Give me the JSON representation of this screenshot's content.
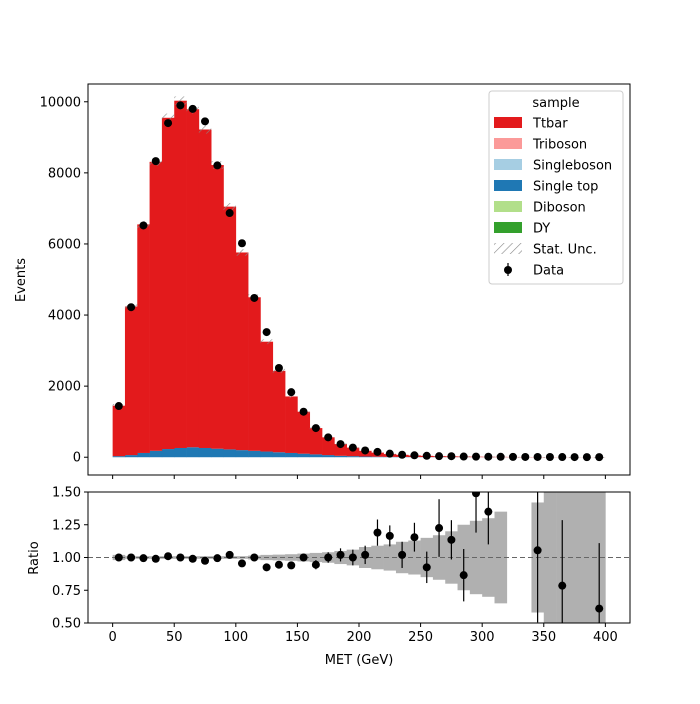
{
  "chart_data": [
    {
      "type": "bar",
      "subtype": "stacked-histogram",
      "xlabel": "",
      "ylabel": "Events",
      "xlim": [
        -20,
        420
      ],
      "ylim": [
        -500,
        10500
      ],
      "bin_edges": [
        0,
        10,
        20,
        30,
        40,
        50,
        60,
        70,
        80,
        90,
        100,
        110,
        120,
        130,
        140,
        150,
        160,
        170,
        180,
        190,
        200,
        210,
        220,
        230,
        240,
        250,
        260,
        270,
        280,
        290,
        300,
        310,
        320,
        330,
        340,
        350,
        360,
        370,
        380,
        390,
        400
      ],
      "x_ticks": [
        0,
        50,
        100,
        150,
        200,
        250,
        300,
        350,
        400
      ],
      "y_ticks": [
        0,
        2000,
        4000,
        6000,
        8000,
        10000
      ],
      "y_tick_labels": [
        "0",
        "2000",
        "4000",
        "6000",
        "8000",
        "10000"
      ],
      "legend": {
        "title": "sample",
        "position": "top-right",
        "entries": [
          {
            "label": "Ttbar",
            "color": "#e31a1c",
            "kind": "patch"
          },
          {
            "label": "Triboson",
            "color": "#fb9a99",
            "kind": "patch"
          },
          {
            "label": "Singleboson",
            "color": "#a6cee3",
            "kind": "patch"
          },
          {
            "label": "Single top",
            "color": "#1f78b4",
            "kind": "patch"
          },
          {
            "label": "Diboson",
            "color": "#b2df8a",
            "kind": "patch"
          },
          {
            "label": "DY",
            "color": "#33a02c",
            "kind": "patch"
          },
          {
            "label": "Stat. Unc.",
            "color": "#888888",
            "kind": "hatch"
          },
          {
            "label": "Data",
            "color": "#000000",
            "kind": "marker"
          }
        ]
      },
      "series": [
        {
          "name": "Single top",
          "color": "#1f78b4",
          "values": [
            30,
            60,
            120,
            180,
            230,
            260,
            280,
            260,
            240,
            220,
            200,
            180,
            160,
            140,
            120,
            100,
            80,
            60,
            40,
            30,
            20,
            15,
            10,
            8,
            5,
            4,
            3,
            2,
            2,
            1,
            1,
            1,
            1,
            1,
            0,
            0,
            0,
            0,
            0,
            0
          ]
        },
        {
          "name": "Ttbar",
          "color": "#e31a1c",
          "values": [
            1420,
            4180,
            6430,
            8130,
            9320,
            9770,
            9510,
            8960,
            7980,
            6830,
            5560,
            4320,
            3090,
            2290,
            1590,
            1180,
            740,
            500,
            330,
            240,
            160,
            115,
            80,
            60,
            45,
            35,
            28,
            22,
            18,
            14,
            11,
            9,
            7,
            6,
            5,
            4,
            3,
            3,
            2,
            2
          ]
        }
      ],
      "data_points": {
        "name": "Data",
        "x": [
          5,
          15,
          25,
          35,
          45,
          55,
          65,
          75,
          85,
          95,
          105,
          115,
          125,
          135,
          145,
          155,
          165,
          175,
          185,
          195,
          205,
          215,
          225,
          235,
          245,
          255,
          265,
          275,
          285,
          295,
          305,
          315,
          325,
          335,
          345,
          355,
          365,
          375,
          385,
          395
        ],
        "y": [
          1440,
          4220,
          6520,
          8330,
          9400,
          9900,
          9800,
          9450,
          8210,
          6870,
          6020,
          4480,
          3520,
          2510,
          1830,
          1280,
          820,
          560,
          370,
          270,
          190,
          150,
          100,
          70,
          55,
          40,
          30,
          28,
          20,
          17,
          14,
          12,
          10,
          8,
          7,
          6,
          5,
          4,
          3,
          3
        ]
      }
    },
    {
      "type": "scatter",
      "subtype": "ratio",
      "xlabel": "MET (GeV)",
      "ylabel": "Ratio",
      "xlim": [
        -20,
        420
      ],
      "ylim": [
        0.5,
        1.5
      ],
      "x_ticks": [
        0,
        50,
        100,
        150,
        200,
        250,
        300,
        350,
        400
      ],
      "y_ticks": [
        0.5,
        0.75,
        1.0,
        1.25,
        1.5
      ],
      "y_tick_labels": [
        "0.50",
        "0.75",
        "1.00",
        "1.25",
        "1.50"
      ],
      "reference_line": 1.0,
      "uncertainty_band": {
        "color": "#b0b0b0",
        "half_width": [
          0.02,
          0.01,
          0.01,
          0.01,
          0.01,
          0.01,
          0.01,
          0.01,
          0.01,
          0.01,
          0.01,
          0.015,
          0.02,
          0.022,
          0.025,
          0.03,
          0.035,
          0.04,
          0.05,
          0.06,
          0.08,
          0.09,
          0.1,
          0.12,
          0.13,
          0.15,
          0.17,
          0.2,
          0.25,
          0.28,
          0.3,
          0.35,
          null,
          null,
          0.42,
          0.63,
          0.7,
          0.7,
          0.75,
          0.8
        ]
      },
      "points": {
        "x": [
          5,
          15,
          25,
          35,
          45,
          55,
          65,
          75,
          85,
          95,
          105,
          115,
          125,
          135,
          145,
          155,
          165,
          175,
          185,
          195,
          205,
          215,
          225,
          235,
          245,
          255,
          265,
          275,
          285,
          295,
          305,
          345,
          365,
          395
        ],
        "y": [
          1.0,
          1.0,
          0.995,
          0.99,
          1.01,
          1.0,
          0.99,
          0.975,
          0.995,
          1.02,
          0.955,
          1.0,
          0.925,
          0.945,
          0.94,
          1.0,
          0.945,
          1.0,
          1.02,
          1.0,
          1.02,
          1.19,
          1.165,
          1.02,
          1.155,
          0.925,
          1.225,
          1.135,
          0.865,
          1.49,
          1.35,
          1.055,
          0.785,
          0.61
        ],
        "err": [
          0.02,
          0.015,
          0.012,
          0.01,
          0.01,
          0.01,
          0.01,
          0.01,
          0.012,
          0.013,
          0.014,
          0.016,
          0.018,
          0.021,
          0.024,
          0.028,
          0.035,
          0.04,
          0.05,
          0.06,
          0.07,
          0.1,
          0.08,
          0.1,
          0.11,
          0.12,
          0.22,
          0.15,
          0.2,
          0.3,
          0.25,
          0.55,
          0.5,
          0.5
        ]
      }
    }
  ]
}
